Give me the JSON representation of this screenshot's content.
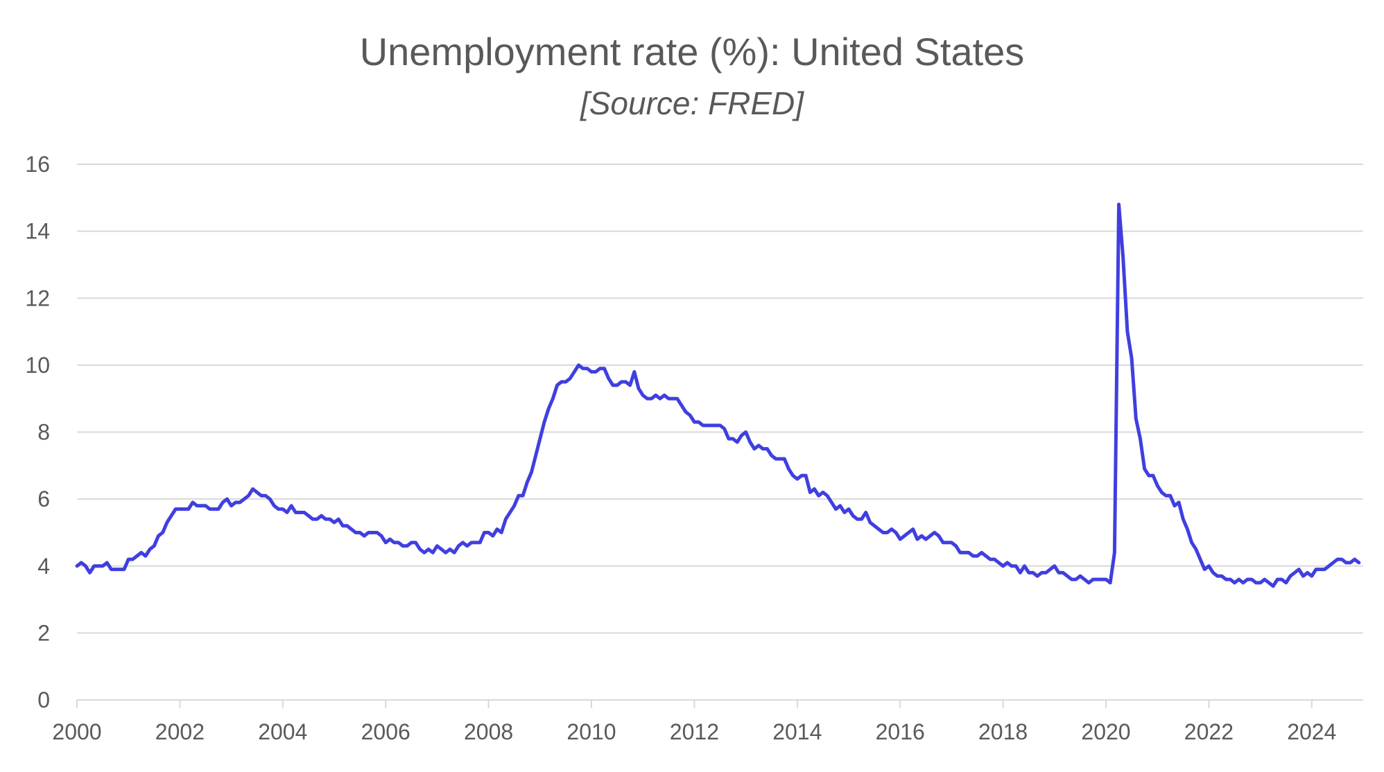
{
  "chart_data": {
    "type": "line",
    "title": "Unemployment rate (%): United States",
    "subtitle": "[Source: FRED]",
    "xlabel": "",
    "ylabel": "",
    "ylim": [
      0,
      16
    ],
    "xlim": [
      "2000-01",
      "2025-01"
    ],
    "y_ticks": [
      0,
      2,
      4,
      6,
      8,
      10,
      12,
      14,
      16
    ],
    "x_ticks": [
      "2000",
      "2002",
      "2004",
      "2006",
      "2008",
      "2010",
      "2012",
      "2014",
      "2016",
      "2018",
      "2020",
      "2022",
      "2024"
    ],
    "grid": "horizontal",
    "legend": "none",
    "line_color": "#3f3fe0",
    "grid_color": "#d9d9d9",
    "series": [
      {
        "start": "2000-01",
        "frequency": "monthly",
        "values": [
          4.0,
          4.1,
          4.0,
          3.8,
          4.0,
          4.0,
          4.0,
          4.1,
          3.9,
          3.9,
          3.9,
          3.9,
          4.2,
          4.2,
          4.3,
          4.4,
          4.3,
          4.5,
          4.6,
          4.9,
          5.0,
          5.3,
          5.5,
          5.7,
          5.7,
          5.7,
          5.7,
          5.9,
          5.8,
          5.8,
          5.8,
          5.7,
          5.7,
          5.7,
          5.9,
          6.0,
          5.8,
          5.9,
          5.9,
          6.0,
          6.1,
          6.3,
          6.2,
          6.1,
          6.1,
          6.0,
          5.8,
          5.7,
          5.7,
          5.6,
          5.8,
          5.6,
          5.6,
          5.6,
          5.5,
          5.4,
          5.4,
          5.5,
          5.4,
          5.4,
          5.3,
          5.4,
          5.2,
          5.2,
          5.1,
          5.0,
          5.0,
          4.9,
          5.0,
          5.0,
          5.0,
          4.9,
          4.7,
          4.8,
          4.7,
          4.7,
          4.6,
          4.6,
          4.7,
          4.7,
          4.5,
          4.4,
          4.5,
          4.4,
          4.6,
          4.5,
          4.4,
          4.5,
          4.4,
          4.6,
          4.7,
          4.6,
          4.7,
          4.7,
          4.7,
          5.0,
          5.0,
          4.9,
          5.1,
          5.0,
          5.4,
          5.6,
          5.8,
          6.1,
          6.1,
          6.5,
          6.8,
          7.3,
          7.8,
          8.3,
          8.7,
          9.0,
          9.4,
          9.5,
          9.5,
          9.6,
          9.8,
          10.0,
          9.9,
          9.9,
          9.8,
          9.8,
          9.9,
          9.9,
          9.6,
          9.4,
          9.4,
          9.5,
          9.5,
          9.4,
          9.8,
          9.3,
          9.1,
          9.0,
          9.0,
          9.1,
          9.0,
          9.1,
          9.0,
          9.0,
          9.0,
          8.8,
          8.6,
          8.5,
          8.3,
          8.3,
          8.2,
          8.2,
          8.2,
          8.2,
          8.2,
          8.1,
          7.8,
          7.8,
          7.7,
          7.9,
          8.0,
          7.7,
          7.5,
          7.6,
          7.5,
          7.5,
          7.3,
          7.2,
          7.2,
          7.2,
          6.9,
          6.7,
          6.6,
          6.7,
          6.7,
          6.2,
          6.3,
          6.1,
          6.2,
          6.1,
          5.9,
          5.7,
          5.8,
          5.6,
          5.7,
          5.5,
          5.4,
          5.4,
          5.6,
          5.3,
          5.2,
          5.1,
          5.0,
          5.0,
          5.1,
          5.0,
          4.8,
          4.9,
          5.0,
          5.1,
          4.8,
          4.9,
          4.8,
          4.9,
          5.0,
          4.9,
          4.7,
          4.7,
          4.7,
          4.6,
          4.4,
          4.4,
          4.4,
          4.3,
          4.3,
          4.4,
          4.3,
          4.2,
          4.2,
          4.1,
          4.0,
          4.1,
          4.0,
          4.0,
          3.8,
          4.0,
          3.8,
          3.8,
          3.7,
          3.8,
          3.8,
          3.9,
          4.0,
          3.8,
          3.8,
          3.7,
          3.6,
          3.6,
          3.7,
          3.6,
          3.5,
          3.6,
          3.6,
          3.6,
          3.6,
          3.5,
          4.4,
          14.8,
          13.2,
          11.0,
          10.2,
          8.4,
          7.8,
          6.9,
          6.7,
          6.7,
          6.4,
          6.2,
          6.1,
          6.1,
          5.8,
          5.9,
          5.4,
          5.1,
          4.7,
          4.5,
          4.2,
          3.9,
          4.0,
          3.8,
          3.7,
          3.7,
          3.6,
          3.6,
          3.5,
          3.6,
          3.5,
          3.6,
          3.6,
          3.5,
          3.5,
          3.6,
          3.5,
          3.4,
          3.6,
          3.6,
          3.5,
          3.7,
          3.8,
          3.9,
          3.7,
          3.8,
          3.7,
          3.9,
          3.9,
          3.9,
          4.0,
          4.1,
          4.2,
          4.2,
          4.1,
          4.1,
          4.2,
          4.1
        ]
      }
    ]
  }
}
